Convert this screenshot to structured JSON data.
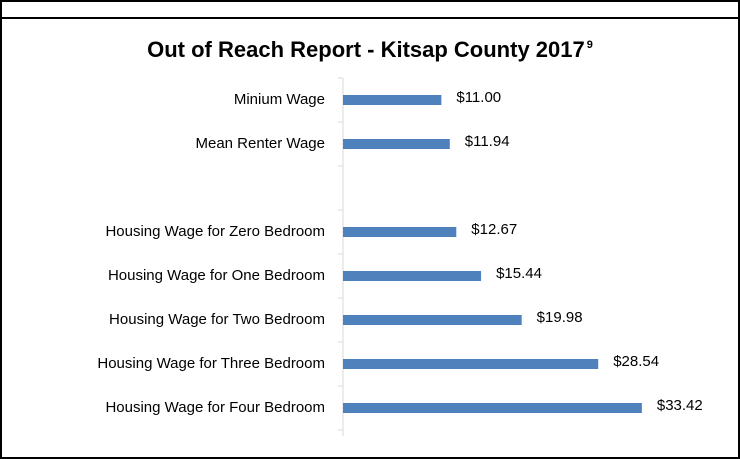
{
  "chart_data": {
    "type": "hbar",
    "title": "Out of Reach Report - Kitsap County 2017",
    "title_note": "9",
    "categories": [
      "Minium Wage",
      "Mean Renter Wage",
      null,
      "Housing Wage for Zero Bedroom",
      "Housing Wage for One Bedroom",
      "Housing Wage for Two Bedroom",
      "Housing Wage for Three Bedroom",
      "Housing Wage for Four Bedroom"
    ],
    "values": [
      11.0,
      11.94,
      null,
      12.67,
      15.44,
      19.98,
      28.54,
      33.42
    ],
    "value_labels": [
      "$11.00",
      "$11.94",
      null,
      "$12.67",
      "$15.44",
      "$19.98",
      "$28.54",
      "$33.42"
    ],
    "color": "#4f81bd",
    "xlim": [
      0,
      35
    ]
  }
}
